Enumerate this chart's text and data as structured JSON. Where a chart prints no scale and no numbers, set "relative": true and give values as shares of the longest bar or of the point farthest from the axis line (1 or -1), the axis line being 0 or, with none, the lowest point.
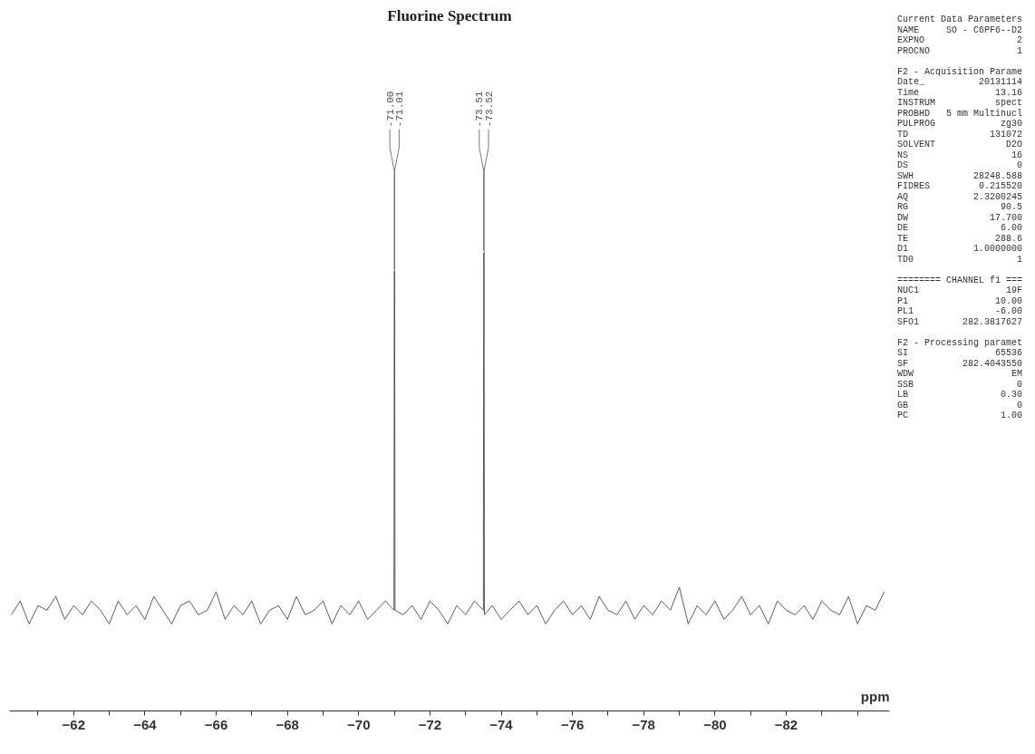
{
  "chart_data": {
    "type": "line",
    "title": "Fluorine Spectrum",
    "xlabel": "ppm",
    "relative": true,
    "color": "#333333",
    "xlim": [
      -60.2,
      -84.9
    ],
    "xticks": [
      {
        "value": -61,
        "label": null
      },
      -62,
      {
        "value": -63,
        "label": null
      },
      -64,
      {
        "value": -65,
        "label": null
      },
      -66,
      {
        "value": -67,
        "label": null
      },
      -68,
      {
        "value": -69,
        "label": null
      },
      -70,
      {
        "value": -71,
        "label": null
      },
      -72,
      {
        "value": -73,
        "label": null
      },
      -74,
      {
        "value": -75,
        "label": null
      },
      -76,
      {
        "value": -77,
        "label": null
      },
      -78,
      {
        "value": -79,
        "label": null
      },
      -80,
      {
        "value": -81,
        "label": null
      },
      -82,
      {
        "value": -83,
        "label": null
      },
      {
        "value": -84,
        "label": null
      }
    ],
    "x": [
      -60.25,
      -60.5,
      -60.75,
      -61.0,
      -61.25,
      -61.5,
      -61.75,
      -62.0,
      -62.25,
      -62.5,
      -62.75,
      -63.0,
      -63.25,
      -63.5,
      -63.75,
      -64.0,
      -64.25,
      -64.5,
      -64.75,
      -65.0,
      -65.25,
      -65.5,
      -65.75,
      -66.0,
      -66.25,
      -66.5,
      -66.75,
      -67.0,
      -67.25,
      -67.5,
      -67.75,
      -68.0,
      -68.25,
      -68.5,
      -68.75,
      -69.0,
      -69.25,
      -69.5,
      -69.75,
      -70.0,
      -70.25,
      -70.5,
      -70.75,
      -70.99,
      -71.0,
      -71.01,
      -71.02,
      -71.25,
      -71.5,
      -71.75,
      -72.0,
      -72.25,
      -72.5,
      -72.75,
      -73.0,
      -73.25,
      -73.5,
      -73.51,
      -73.52,
      -73.53,
      -73.75,
      -74.0,
      -74.25,
      -74.5,
      -74.75,
      -75.0,
      -75.25,
      -75.5,
      -75.75,
      -76.0,
      -76.25,
      -76.5,
      -76.75,
      -77.0,
      -77.25,
      -77.5,
      -77.75,
      -78.0,
      -78.25,
      -78.5,
      -78.75,
      -79.0,
      -79.25,
      -79.5,
      -79.75,
      -80.0,
      -80.25,
      -80.5,
      -80.75,
      -81.0,
      -81.25,
      -81.5,
      -81.75,
      -82.0,
      -82.25,
      -82.5,
      -82.75,
      -83.0,
      -83.25,
      -83.5,
      -83.75,
      -84.0,
      -84.25,
      -84.5,
      -84.75
    ],
    "values": [
      0.21,
      0.24,
      0.19,
      0.23,
      0.22,
      0.25,
      0.2,
      0.23,
      0.21,
      0.24,
      0.22,
      0.19,
      0.24,
      0.21,
      0.23,
      0.2,
      0.25,
      0.22,
      0.19,
      0.23,
      0.24,
      0.21,
      0.22,
      0.26,
      0.2,
      0.23,
      0.21,
      0.24,
      0.19,
      0.22,
      0.23,
      0.2,
      0.25,
      0.21,
      0.22,
      0.24,
      0.19,
      0.23,
      0.21,
      0.24,
      0.2,
      0.22,
      0.24,
      0.22,
      0.96,
      0.95,
      0.22,
      0.21,
      0.23,
      0.2,
      0.24,
      0.22,
      0.19,
      0.23,
      0.21,
      0.24,
      0.22,
      1.0,
      0.99,
      0.21,
      0.23,
      0.2,
      0.22,
      0.24,
      0.21,
      0.23,
      0.19,
      0.22,
      0.24,
      0.21,
      0.23,
      0.2,
      0.25,
      0.22,
      0.21,
      0.24,
      0.2,
      0.23,
      0.21,
      0.24,
      0.22,
      0.27,
      0.19,
      0.23,
      0.21,
      0.24,
      0.2,
      0.22,
      0.25,
      0.21,
      0.23,
      0.19,
      0.24,
      0.22,
      0.21,
      0.23,
      0.2,
      0.24,
      0.22,
      0.21,
      0.25,
      0.19,
      0.23,
      0.22,
      0.26
    ],
    "annotations": [
      {
        "text": "-71.00",
        "x": -71.0,
        "y": 0.96
      },
      {
        "text": "-71.01",
        "x": -71.01,
        "y": 0.95
      },
      {
        "text": "-73.51",
        "x": -73.51,
        "y": 1.0
      },
      {
        "text": "-73.52",
        "x": -73.52,
        "y": 0.99
      },
      "Current Data Parameters\nNAME  SO - C6PF6--D2\nEXPNO  2\nPROCNO  1",
      "F2 - Acquisition Parame\nDate_  20131114\nTime  13.16\nINSTRUM  spect\nPROBHD  5 mm Multinucl\nPULPROG  zg30\nTD  131072\nSOLVENT  D2O\nNS  16\nDS  0\nSWH  28248.588\nFIDRES  0.215520\nAQ  2.3200245\nRG  90.5\nDW  17.700\nDE  6.00\nTE  288.6\nD1  1.0000000\nTD0  1",
      "======== CHANNEL f1 ===\nNUC1  19F\nP1  10.00\nPL1  -6.00\nSFO1  282.3817627",
      "F2 - Processing paramet\nSI  65536\nSF  282.4043550\nWDW  EM\nSSB  0\nLB  0.30\nGB  0\nPC  1.00"
    ]
  }
}
